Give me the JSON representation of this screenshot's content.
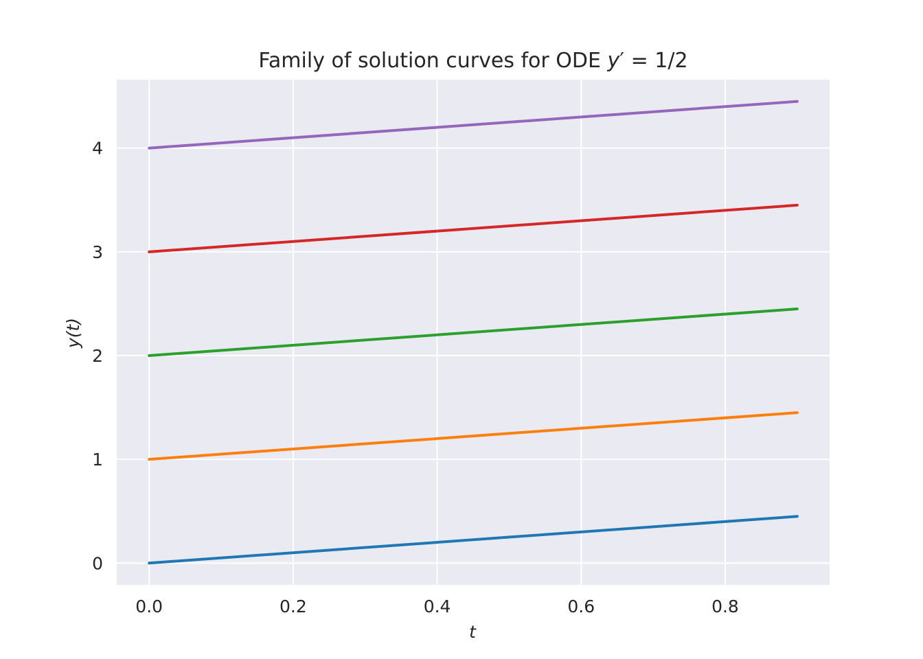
{
  "chart_data": {
    "type": "line",
    "title": "Family of solution curves for ODE y′ = 1/2",
    "title_parts": {
      "prefix": "Family of solution curves for ODE ",
      "var": "y",
      "prime": "′",
      "rest": " = 1/2"
    },
    "xlabel": "t",
    "ylabel": "y(t)",
    "xlim": [
      -0.045,
      0.945
    ],
    "ylim": [
      -0.21,
      4.66
    ],
    "xticks": [
      0.0,
      0.2,
      0.4,
      0.6,
      0.8
    ],
    "xtick_labels": [
      "0.0",
      "0.2",
      "0.4",
      "0.6",
      "0.8"
    ],
    "yticks": [
      0,
      1,
      2,
      3,
      4
    ],
    "ytick_labels": [
      "0",
      "1",
      "2",
      "3",
      "4"
    ],
    "grid": true,
    "legend": "none",
    "background_color": "#eaeaf2",
    "grid_color": "#ffffff",
    "series": [
      {
        "color": "#1f77b4",
        "x": [
          0.0,
          0.9
        ],
        "y": [
          0.0,
          0.45
        ]
      },
      {
        "color": "#ff7f0e",
        "x": [
          0.0,
          0.9
        ],
        "y": [
          1.0,
          1.45
        ]
      },
      {
        "color": "#2ca02c",
        "x": [
          0.0,
          0.9
        ],
        "y": [
          2.0,
          2.45
        ]
      },
      {
        "color": "#d62728",
        "x": [
          0.0,
          0.9
        ],
        "y": [
          3.0,
          3.45
        ]
      },
      {
        "color": "#9467bd",
        "x": [
          0.0,
          0.9
        ],
        "y": [
          4.0,
          4.45
        ]
      }
    ]
  }
}
